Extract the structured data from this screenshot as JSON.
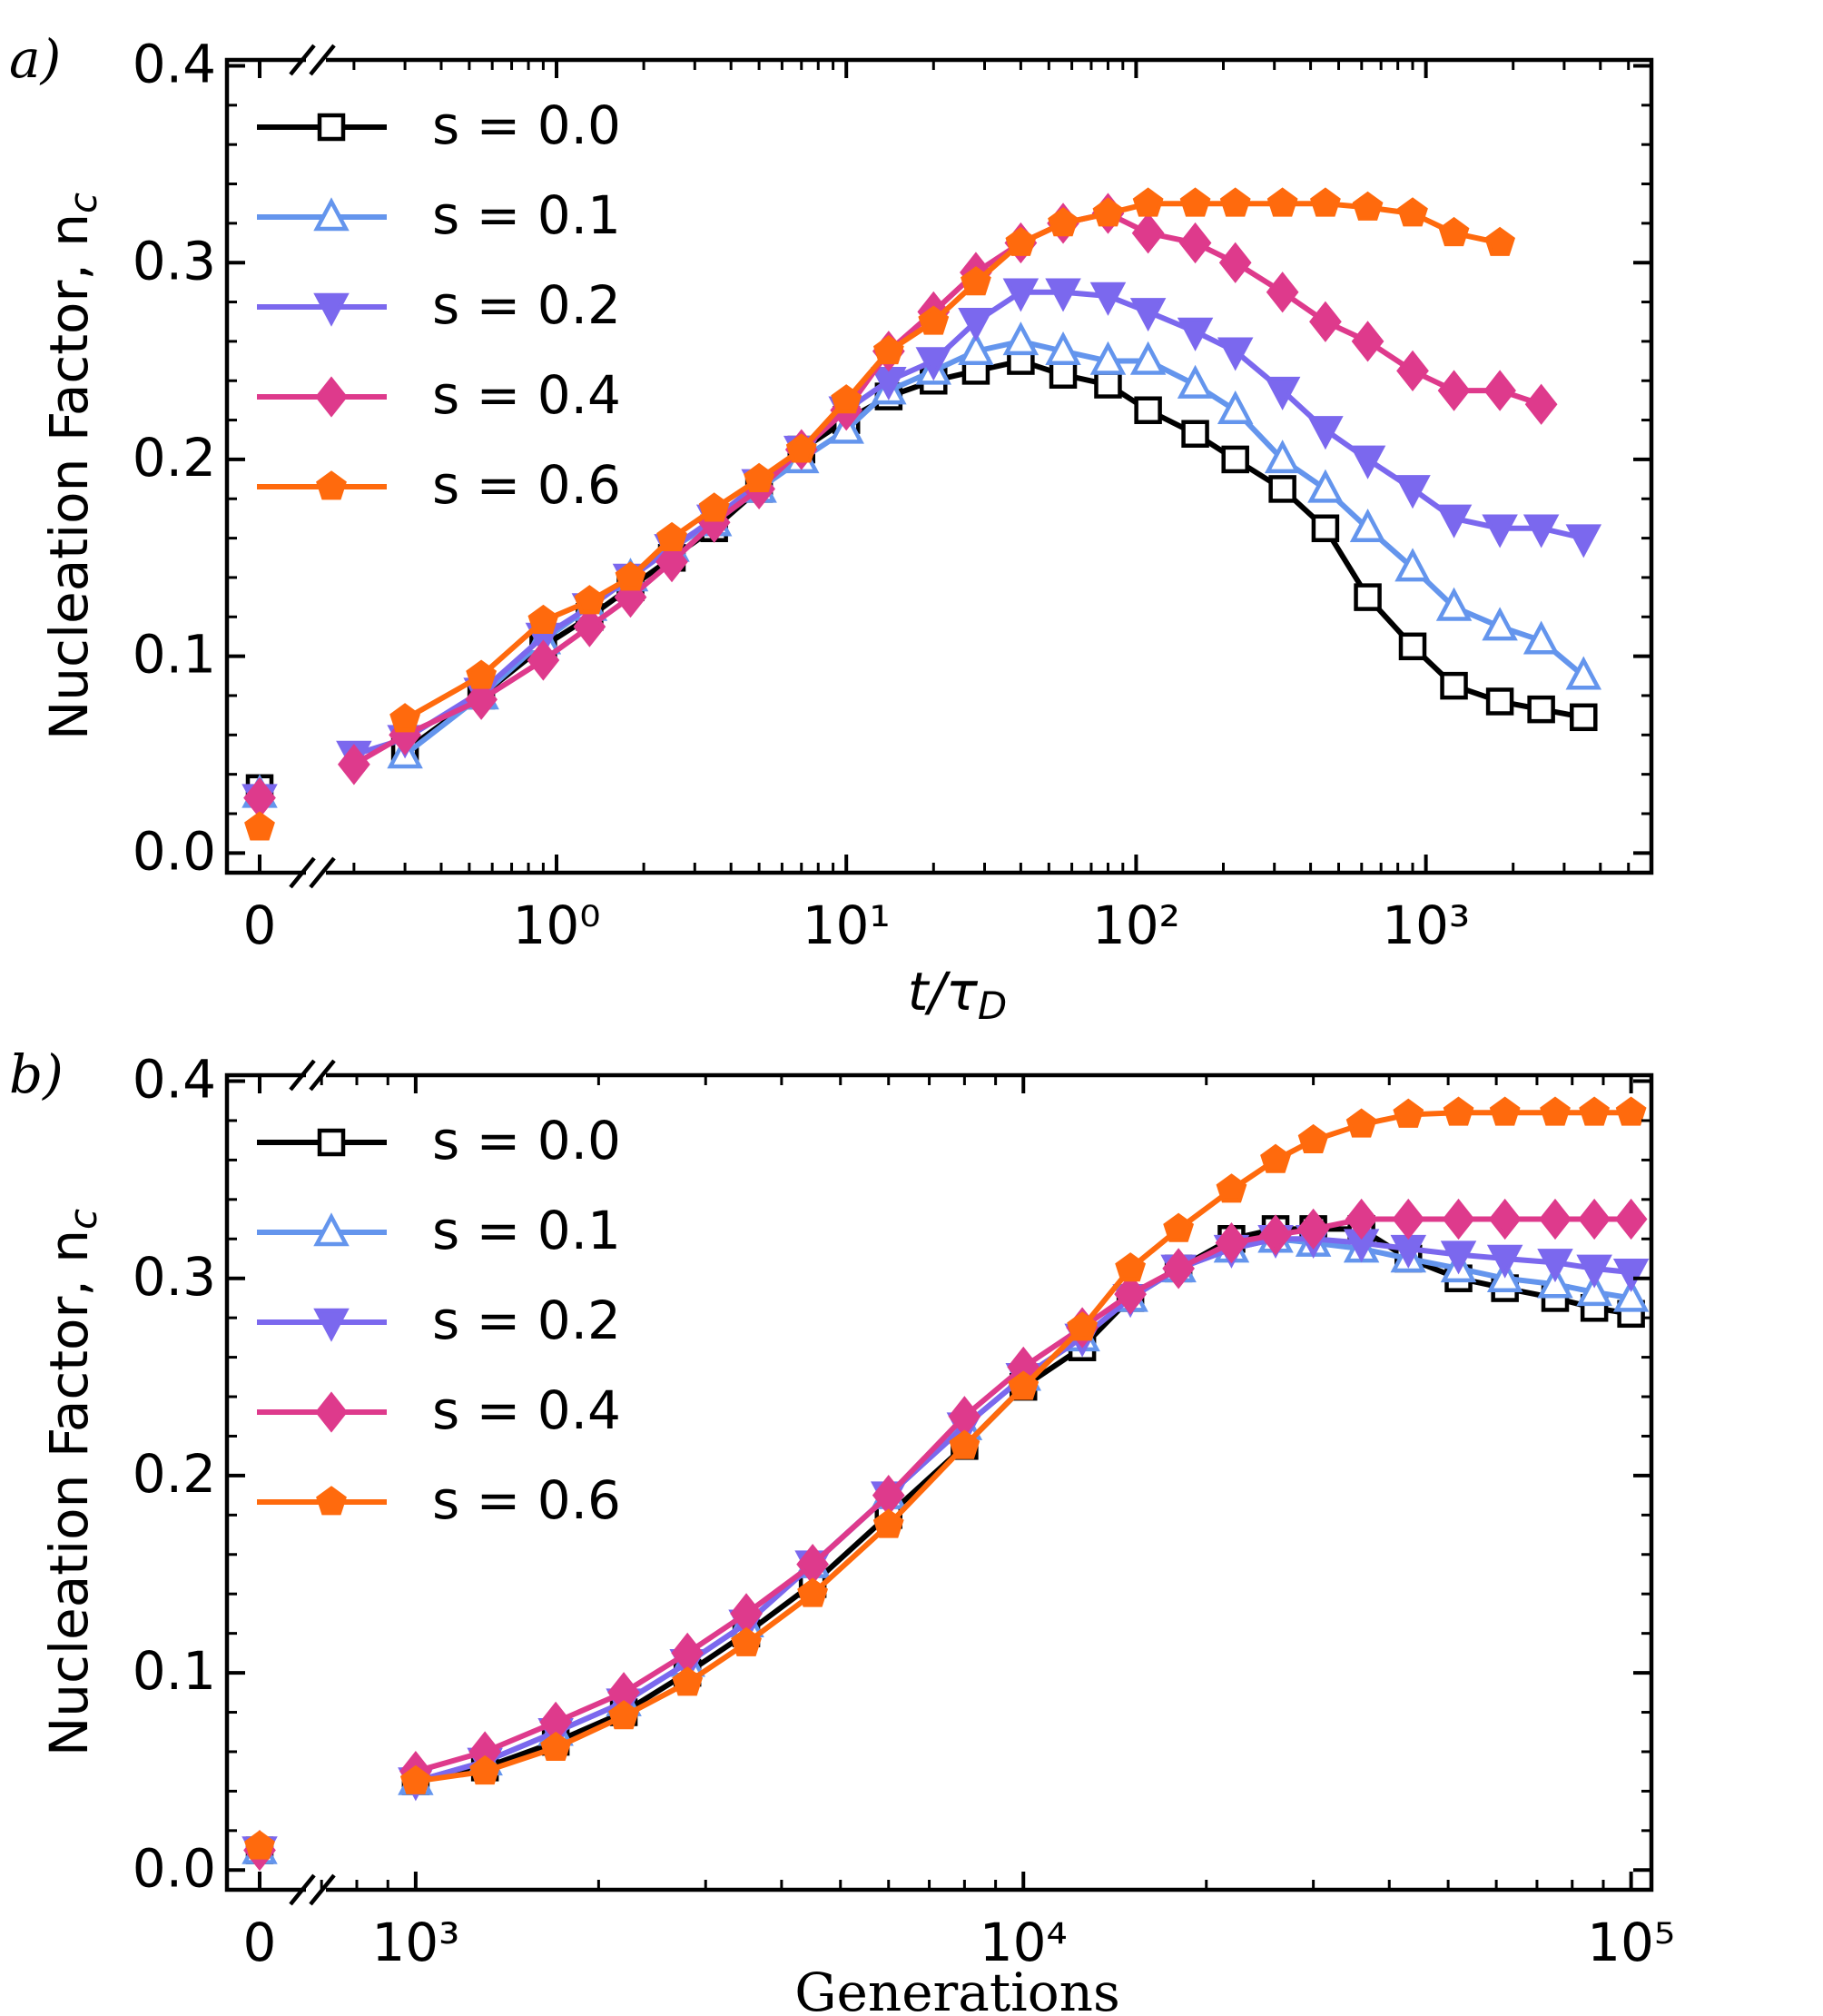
{
  "chart_data": [
    {
      "type": "line",
      "panel_label": "a)",
      "ylabel": "Nucleation Factor, n",
      "ylabel_sub": "c",
      "xlabel": "t/τ",
      "xlabel_sub": "D",
      "xlog": true,
      "xlim": [
        0.15,
        6000
      ],
      "xticks": [
        0,
        {
          "value": 1,
          "label": "10⁰"
        },
        {
          "value": 10,
          "label": "10¹"
        },
        {
          "value": 100,
          "label": "10²"
        },
        {
          "value": 1000,
          "label": "10³"
        }
      ],
      "ylim": [
        -0.01,
        0.403
      ],
      "yticks": [
        {
          "value": 0,
          "label": "0.0"
        },
        0.1,
        0.2,
        0.3,
        0.4
      ],
      "legend": "upper left",
      "x": [
        0.2,
        0.3,
        0.55,
        0.9,
        1.3,
        1.8,
        2.5,
        3.5,
        5,
        7,
        10,
        14,
        20,
        28,
        40,
        56,
        80,
        110,
        160,
        220,
        320,
        450,
        630,
        900,
        1250,
        1800,
        2500,
        3500
      ],
      "series": [
        {
          "name": "s = 0.0",
          "color": "#000000",
          "marker": "square",
          "markerfacecolor": "#ffffff",
          "value_at_zero": 0.033,
          "values": [
            null,
            0.052,
            0.08,
            0.105,
            0.12,
            0.135,
            0.15,
            0.165,
            0.185,
            0.205,
            0.22,
            0.232,
            0.24,
            0.245,
            0.25,
            0.243,
            0.238,
            0.225,
            0.213,
            0.2,
            0.185,
            0.165,
            0.13,
            0.105,
            0.085,
            0.077,
            0.073,
            0.069
          ]
        },
        {
          "name": "s = 0.1",
          "color": "#6495ed",
          "marker": "triangle-up",
          "markerfacecolor": "#ffffff",
          "value_at_zero": 0.03,
          "values": [
            null,
            0.05,
            0.08,
            0.108,
            0.125,
            0.14,
            0.155,
            0.168,
            0.185,
            0.2,
            0.215,
            0.235,
            0.245,
            0.255,
            0.26,
            0.255,
            0.25,
            0.25,
            0.238,
            0.225,
            0.2,
            0.185,
            0.165,
            0.145,
            0.125,
            0.115,
            0.108,
            0.09
          ]
        },
        {
          "name": "s = 0.2",
          "color": "#7b68ee",
          "marker": "triangle-down",
          "markerfacecolor": "#7b68ee",
          "value_at_zero": 0.028,
          "values": [
            0.05,
            0.058,
            0.082,
            0.11,
            0.125,
            0.14,
            0.155,
            0.17,
            0.188,
            0.205,
            0.225,
            0.24,
            0.25,
            0.27,
            0.285,
            0.285,
            0.283,
            0.275,
            0.265,
            0.255,
            0.235,
            0.215,
            0.2,
            0.185,
            0.17,
            0.165,
            0.165,
            0.16
          ]
        },
        {
          "name": "s = 0.4",
          "color": "#de3a8c",
          "marker": "diamond",
          "markerfacecolor": "#de3a8c",
          "value_at_zero": 0.028,
          "values": [
            0.045,
            0.06,
            0.078,
            0.098,
            0.115,
            0.13,
            0.148,
            0.168,
            0.185,
            0.205,
            0.225,
            0.255,
            0.275,
            0.295,
            0.31,
            0.32,
            0.325,
            0.315,
            0.31,
            0.3,
            0.285,
            0.27,
            0.26,
            0.245,
            0.235,
            0.235,
            0.228,
            null
          ]
        },
        {
          "name": "s = 0.6",
          "color": "#ff6a0d",
          "marker": "pentagon",
          "markerfacecolor": "#ff6a0d",
          "value_at_zero": 0.013,
          "values": [
            null,
            0.068,
            0.09,
            0.118,
            0.128,
            0.14,
            0.16,
            0.175,
            0.19,
            0.205,
            0.23,
            0.255,
            0.27,
            0.29,
            0.31,
            0.32,
            0.325,
            0.33,
            0.33,
            0.33,
            0.33,
            0.33,
            0.328,
            0.325,
            0.315,
            0.31,
            null,
            null
          ]
        }
      ]
    },
    {
      "type": "line",
      "panel_label": "b)",
      "ylabel": "Nucleation Factor, n",
      "ylabel_sub": "c",
      "xlabel": "Generations",
      "xlog": true,
      "xlim": [
        690,
        108000
      ],
      "xticks": [
        0,
        {
          "value": 1000,
          "label": "10³"
        },
        {
          "value": 10000,
          "label": "10⁴"
        },
        {
          "value": 100000,
          "label": "10⁵"
        }
      ],
      "ylim": [
        -0.01,
        0.403
      ],
      "yticks": [
        {
          "value": 0,
          "label": "0.0"
        },
        0.1,
        0.2,
        0.3,
        0.4
      ],
      "legend": "upper left",
      "x": [
        1000,
        1300,
        1700,
        2200,
        2800,
        3500,
        4500,
        6000,
        8000,
        10000,
        12500,
        15000,
        18000,
        22000,
        26000,
        30000,
        36000,
        43000,
        52000,
        62000,
        75000,
        87000,
        100000
      ],
      "series": [
        {
          "name": "s = 0.0",
          "color": "#000000",
          "marker": "square",
          "markerfacecolor": "#ffffff",
          "value_at_zero": 0.01,
          "values": [
            0.045,
            0.052,
            0.065,
            0.08,
            0.1,
            0.12,
            0.145,
            0.18,
            0.215,
            0.245,
            0.265,
            0.29,
            0.305,
            0.32,
            0.325,
            0.325,
            0.325,
            0.31,
            0.3,
            0.295,
            0.29,
            0.285,
            0.282
          ]
        },
        {
          "name": "s = 0.1",
          "color": "#6495ed",
          "marker": "triangle-up",
          "markerfacecolor": "#ffffff",
          "value_at_zero": 0.01,
          "values": [
            0.045,
            0.055,
            0.07,
            0.085,
            0.105,
            0.125,
            0.155,
            0.19,
            0.225,
            0.25,
            0.27,
            0.29,
            0.305,
            0.315,
            0.32,
            0.318,
            0.315,
            0.31,
            0.305,
            0.3,
            0.297,
            0.293,
            0.29
          ]
        },
        {
          "name": "s = 0.2",
          "color": "#7b68ee",
          "marker": "triangle-down",
          "markerfacecolor": "#7b68ee",
          "value_at_zero": 0.01,
          "values": [
            0.045,
            0.055,
            0.07,
            0.085,
            0.105,
            0.125,
            0.155,
            0.19,
            0.225,
            0.25,
            0.27,
            0.29,
            0.305,
            0.315,
            0.32,
            0.32,
            0.318,
            0.315,
            0.312,
            0.31,
            0.308,
            0.305,
            0.303
          ]
        },
        {
          "name": "s = 0.4",
          "color": "#de3a8c",
          "marker": "diamond",
          "markerfacecolor": "#de3a8c",
          "value_at_zero": 0.01,
          "values": [
            0.05,
            0.06,
            0.075,
            0.09,
            0.11,
            0.13,
            0.155,
            0.19,
            0.23,
            0.255,
            0.275,
            0.292,
            0.305,
            0.318,
            0.322,
            0.325,
            0.33,
            0.33,
            0.33,
            0.33,
            0.33,
            0.33,
            0.33
          ]
        },
        {
          "name": "s = 0.6",
          "color": "#ff6a0d",
          "marker": "pentagon",
          "markerfacecolor": "#ff6a0d",
          "value_at_zero": 0.012,
          "values": [
            0.045,
            0.05,
            0.062,
            0.078,
            0.095,
            0.115,
            0.14,
            0.175,
            0.215,
            0.245,
            0.275,
            0.305,
            0.325,
            0.345,
            0.36,
            0.37,
            0.378,
            0.383,
            0.384,
            0.384,
            0.384,
            0.384,
            0.384
          ]
        }
      ]
    }
  ]
}
